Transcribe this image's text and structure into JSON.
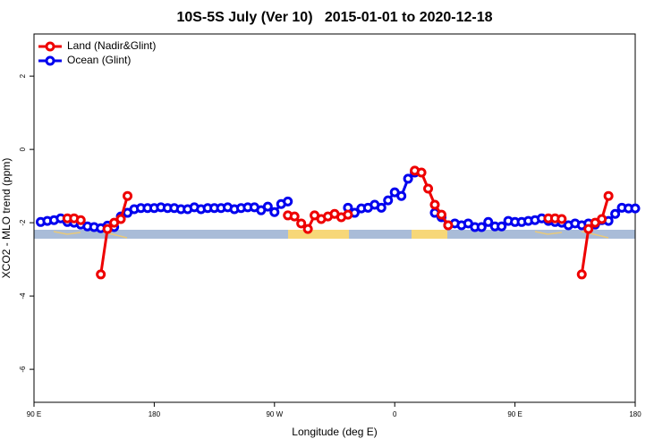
{
  "chart_data": {
    "type": "line",
    "title": "10S-5S July (Ver 10)   2015-01-01 to 2020-12-18",
    "x_label": "Longitude (deg E)",
    "y_label": "XCO2 - MLO trend (ppm)",
    "xlim": [
      90,
      540
    ],
    "xticks": [
      {
        "value": 90,
        "label": "90 E"
      },
      180,
      {
        "value": 270,
        "label": "90 W"
      },
      {
        "value": 360,
        "label": "0"
      },
      {
        "value": 450,
        "label": "90 E"
      },
      {
        "value": 540,
        "label": "180"
      }
    ],
    "ylim": [
      -6.9,
      3.15
    ],
    "yticks": [
      -6,
      -4,
      -2,
      0,
      2
    ],
    "legend": "top-left",
    "series": [
      {
        "name": "Land (Nadir&Glint)",
        "color": "#ee0000",
        "x": [
          115,
          120,
          125,
          null,
          140,
          145,
          150,
          155,
          160,
          null,
          280,
          285,
          290,
          295,
          300,
          305,
          310,
          315,
          320,
          325,
          null,
          375,
          380,
          385,
          390,
          395,
          400,
          null,
          475,
          480,
          485,
          null,
          500,
          505,
          510,
          515,
          520
        ],
        "values": [
          -1.88,
          -1.88,
          -1.93,
          null,
          -3.41,
          -2.17,
          -2.0,
          -1.9,
          -1.27,
          null,
          -1.8,
          -1.83,
          -2.02,
          -2.17,
          -1.8,
          -1.9,
          -1.83,
          -1.76,
          -1.85,
          -1.78,
          null,
          -0.58,
          -0.63,
          -1.07,
          -1.51,
          -1.78,
          -2.07,
          null,
          -1.88,
          -1.88,
          -1.9,
          null,
          -3.41,
          -2.17,
          -2.0,
          -1.9,
          -1.27
        ]
      },
      {
        "name": "Ocean (Glint)",
        "color": "#0000ee",
        "x": [
          95,
          100,
          105,
          110,
          115,
          120,
          125,
          130,
          135,
          140,
          145,
          150,
          155,
          160,
          165,
          170,
          175,
          180,
          185,
          190,
          195,
          200,
          205,
          210,
          215,
          220,
          225,
          230,
          235,
          240,
          245,
          250,
          255,
          260,
          265,
          270,
          275,
          280,
          null,
          325,
          330,
          335,
          340,
          345,
          350,
          355,
          360,
          365,
          370,
          375,
          null,
          390,
          395,
          400,
          405,
          410,
          415,
          420,
          425,
          430,
          435,
          440,
          445,
          450,
          455,
          460,
          465,
          470,
          475,
          480,
          485,
          490,
          495,
          500,
          505,
          510,
          515,
          520,
          525,
          530,
          535,
          540
        ],
        "values": [
          -1.98,
          -1.95,
          -1.93,
          -1.88,
          -1.98,
          -2.0,
          -2.05,
          -2.1,
          -2.12,
          -2.15,
          -2.08,
          -2.12,
          -1.83,
          -1.73,
          -1.63,
          -1.6,
          -1.6,
          -1.6,
          -1.58,
          -1.6,
          -1.6,
          -1.63,
          -1.63,
          -1.58,
          -1.63,
          -1.6,
          -1.6,
          -1.6,
          -1.58,
          -1.63,
          -1.6,
          -1.58,
          -1.58,
          -1.66,
          -1.56,
          -1.71,
          -1.49,
          -1.42,
          null,
          -1.59,
          -1.73,
          -1.61,
          -1.59,
          -1.51,
          -1.59,
          -1.39,
          -1.17,
          -1.27,
          -0.8,
          -0.63,
          null,
          -1.73,
          -1.85,
          -2.07,
          -2.02,
          -2.07,
          -2.02,
          -2.12,
          -2.12,
          -1.98,
          -2.1,
          -2.1,
          -1.95,
          -1.98,
          -1.98,
          -1.95,
          -1.93,
          -1.88,
          -1.95,
          -1.98,
          -2.0,
          -2.07,
          -2.02,
          -2.07,
          -2.02,
          -2.05,
          -1.93,
          -1.95,
          -1.76,
          -1.59,
          -1.61,
          -1.61
        ]
      }
    ]
  }
}
